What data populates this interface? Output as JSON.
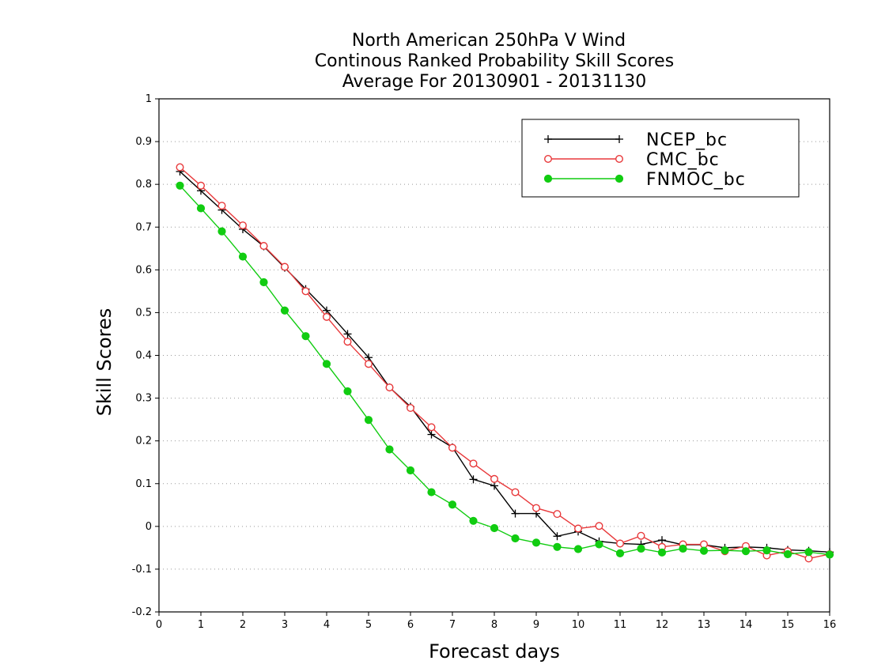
{
  "chart_data": {
    "type": "line",
    "title_lines": [
      "North American 250hPa V Wind",
      "Continous Ranked Probability Skill Scores",
      "Average For 20130901 - 20131130"
    ],
    "xlabel": "Forecast days",
    "ylabel": "Skill Scores",
    "xlim": [
      0,
      16
    ],
    "ylim": [
      -0.2,
      1
    ],
    "x_ticks": [
      "0",
      "1",
      "2",
      "3",
      "4",
      "5",
      "6",
      "7",
      "8",
      "9",
      "10",
      "11",
      "12",
      "13",
      "14",
      "15",
      "16"
    ],
    "y_ticks": [
      "1",
      "0.9",
      "0.8",
      "0.7",
      "0.6",
      "0.5",
      "0.4",
      "0.3",
      "0.2",
      "0.1",
      "0",
      "-0.1",
      "-0.2"
    ],
    "grid": "horizontal dotted",
    "legend_position": "top-right",
    "x": [
      0.5,
      1,
      1.5,
      2,
      2.5,
      3,
      3.5,
      4,
      4.5,
      5,
      5.5,
      6,
      6.5,
      7,
      7.5,
      8,
      8.5,
      9,
      9.5,
      10,
      10.5,
      11,
      11.5,
      12,
      12.5,
      13,
      13.5,
      14,
      14.5,
      15,
      15.5,
      16
    ],
    "series": [
      {
        "name": "NCEP_bc",
        "color": "#000000",
        "marker": "plus",
        "values": [
          0.83,
          0.785,
          0.74,
          0.695,
          0.655,
          0.605,
          0.555,
          0.505,
          0.45,
          0.395,
          0.325,
          0.28,
          0.215,
          0.185,
          0.11,
          0.095,
          0.03,
          0.03,
          -0.023,
          -0.012,
          -0.035,
          -0.04,
          -0.042,
          -0.032,
          -0.043,
          -0.043,
          -0.05,
          -0.048,
          -0.05,
          -0.055,
          -0.057,
          -0.06
        ]
      },
      {
        "name": "CMC_bc",
        "color": "#e8393b",
        "marker": "open-circle",
        "values": [
          0.84,
          0.797,
          0.75,
          0.704,
          0.656,
          0.607,
          0.55,
          0.49,
          0.432,
          0.38,
          0.325,
          0.277,
          0.232,
          0.184,
          0.147,
          0.111,
          0.08,
          0.043,
          0.029,
          -0.005,
          0.001,
          -0.04,
          -0.022,
          -0.048,
          -0.042,
          -0.042,
          -0.058,
          -0.046,
          -0.068,
          -0.058,
          -0.075,
          -0.065
        ]
      },
      {
        "name": "FNMOC_bc",
        "color": "#11cc11",
        "marker": "filled-circle",
        "values": [
          0.797,
          0.744,
          0.69,
          0.631,
          0.571,
          0.505,
          0.445,
          0.38,
          0.316,
          0.249,
          0.18,
          0.131,
          0.08,
          0.051,
          0.013,
          -0.004,
          -0.028,
          -0.038,
          -0.048,
          -0.053,
          -0.042,
          -0.063,
          -0.052,
          -0.061,
          -0.052,
          -0.057,
          -0.056,
          -0.058,
          -0.056,
          -0.065,
          -0.06,
          -0.066
        ]
      }
    ]
  }
}
